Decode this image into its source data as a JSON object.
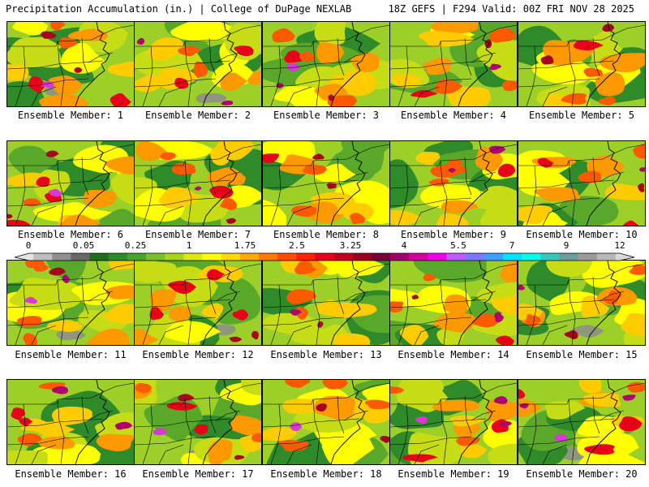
{
  "header": {
    "left": "Precipitation Accumulation (in.) | College of DuPage NEXLAB",
    "right": "18Z GEFS | F294 Valid: 00Z FRI NOV 28 2025"
  },
  "colorbar": {
    "labels": [
      "0",
      "0.05",
      "0.25",
      "1",
      "1.75",
      "2.5",
      "3.25",
      "4",
      "5.5",
      "7",
      "9",
      "12"
    ],
    "colors": [
      "#e4e4e4",
      "#bdbdbd",
      "#8f8f8f",
      "#686868",
      "#1e6e1e",
      "#2f8a2a",
      "#4aa22c",
      "#79bf2c",
      "#a7d31e",
      "#dfe80d",
      "#ffff00",
      "#ffd800",
      "#ffaa00",
      "#ff7b00",
      "#ff4e00",
      "#ff2200",
      "#e8001e",
      "#c2001c",
      "#9a0020",
      "#7a003a",
      "#a0006e",
      "#d4009f",
      "#f000e8",
      "#c05cff",
      "#7c78ff",
      "#3f9fff",
      "#00e0ff",
      "#00ffe6",
      "#36c8be",
      "#6b9e9a",
      "#9a9a9a",
      "#b8b8b8",
      "#d8d8d8"
    ]
  },
  "panels": [
    {
      "label": "Ensemble Member: 1"
    },
    {
      "label": "Ensemble Member: 2"
    },
    {
      "label": "Ensemble Member: 3"
    },
    {
      "label": "Ensemble Member: 4"
    },
    {
      "label": "Ensemble Member: 5"
    },
    {
      "label": "Ensemble Member: 6"
    },
    {
      "label": "Ensemble Member: 7"
    },
    {
      "label": "Ensemble Member: 8"
    },
    {
      "label": "Ensemble Member: 9"
    },
    {
      "label": "Ensemble Member: 10"
    },
    {
      "label": "Ensemble Member: 11"
    },
    {
      "label": "Ensemble Member: 12"
    },
    {
      "label": "Ensemble Member: 13"
    },
    {
      "label": "Ensemble Member: 14"
    },
    {
      "label": "Ensemble Member: 15"
    },
    {
      "label": "Ensemble Member: 16"
    },
    {
      "label": "Ensemble Member: 17"
    },
    {
      "label": "Ensemble Member: 18"
    },
    {
      "label": "Ensemble Member: 19"
    },
    {
      "label": "Ensemble Member: 20"
    }
  ]
}
